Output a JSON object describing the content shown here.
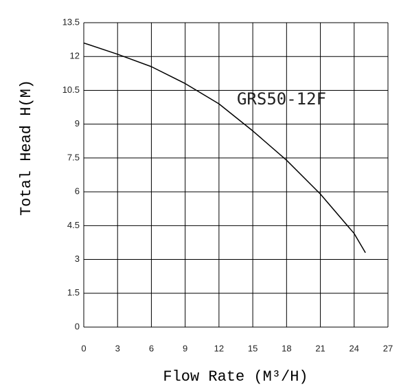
{
  "chart_data": {
    "type": "line",
    "x_label": "Flow Rate (M³/H)",
    "y_label": "Total Head H(M)",
    "annotation": "GRS50-12F",
    "x": [
      0,
      3,
      6,
      9,
      12,
      15,
      18,
      21,
      24,
      25
    ],
    "series": [
      {
        "color": "#000000",
        "values": [
          12.6,
          12.1,
          11.55,
          10.8,
          9.9,
          8.7,
          7.4,
          5.9,
          4.15,
          3.3
        ]
      }
    ],
    "xlim": [
      0,
      27
    ],
    "xticks": [
      0,
      3,
      6,
      9,
      12,
      15,
      18,
      21,
      24,
      27
    ],
    "ylim": [
      0,
      13.5
    ],
    "yticks": [
      0,
      1.5,
      3,
      4.5,
      6,
      7.5,
      9,
      10.5,
      12,
      13.5
    ],
    "grid": true
  }
}
